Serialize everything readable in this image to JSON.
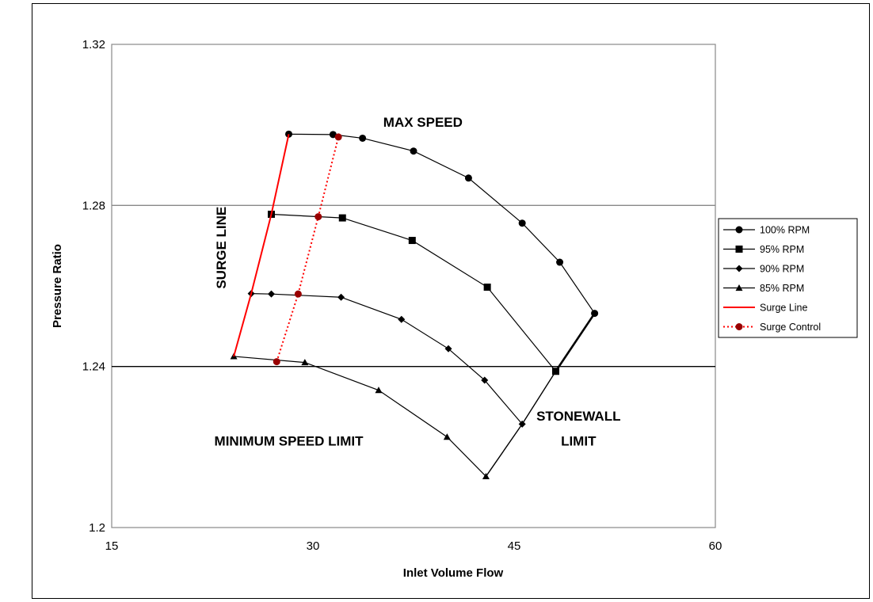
{
  "chart_data": {
    "type": "line",
    "xlabel": "Inlet Volume Flow",
    "ylabel": "Pressure Ratio",
    "xlim": [
      15,
      60
    ],
    "ylim": [
      1.2,
      1.32
    ],
    "xticks": [
      15,
      30,
      45,
      60
    ],
    "yticks": [
      1.2,
      1.24,
      1.28,
      1.32
    ],
    "xtick_labels": [
      "15",
      "30",
      "45",
      "60"
    ],
    "ytick_labels": [
      "1.2",
      "1.24",
      "1.28",
      "1.32"
    ],
    "grid_y": [
      1.24,
      1.28
    ],
    "legend_position": "right",
    "series": [
      {
        "name": "100% RPM",
        "marker": "circle",
        "color": "#000000",
        "x": [
          28.2,
          31.5,
          33.7,
          37.5,
          41.6,
          45.6,
          48.4,
          51.0
        ],
        "y": [
          1.2977,
          1.2976,
          1.2967,
          1.2935,
          1.2868,
          1.2756,
          1.2659,
          1.2532
        ]
      },
      {
        "name": "95% RPM",
        "marker": "square",
        "color": "#000000",
        "x": [
          26.9,
          32.2,
          37.4,
          43.0,
          48.1
        ],
        "y": [
          1.2778,
          1.2769,
          1.2713,
          1.2597,
          1.2388
        ]
      },
      {
        "name": "90% RPM",
        "marker": "diamond",
        "color": "#000000",
        "x": [
          25.4,
          26.9,
          32.1,
          36.6,
          40.1,
          42.8,
          45.6
        ],
        "y": [
          1.2581,
          1.258,
          1.2572,
          1.2517,
          1.2444,
          1.2366,
          1.2257
        ]
      },
      {
        "name": "85% RPM",
        "marker": "triangle",
        "color": "#000000",
        "x": [
          24.1,
          29.4,
          34.9,
          40.0,
          42.9
        ],
        "y": [
          1.2425,
          1.241,
          1.2341,
          1.2225,
          1.2127
        ]
      },
      {
        "name": "Surge Line",
        "marker": "none",
        "line": "solid",
        "color": "#ff0000",
        "x": [
          24.1,
          25.4,
          26.9,
          28.2
        ],
        "y": [
          1.2425,
          1.2581,
          1.2778,
          1.2977
        ]
      },
      {
        "name": "Surge Control",
        "marker": "circle",
        "line": "dotted",
        "color": "#ff0000",
        "marker_color": "#990000",
        "x": [
          27.3,
          28.9,
          30.4,
          31.9
        ],
        "y": [
          1.2412,
          1.258,
          1.2772,
          1.297
        ]
      }
    ],
    "extra_lines": [
      {
        "label": "Stonewall / min-speed limit connector",
        "color": "#000000",
        "x": [
          42.9,
          45.6,
          48.1,
          51.0
        ],
        "y": [
          1.2127,
          1.2257,
          1.2388,
          1.2532
        ]
      }
    ],
    "annotations": [
      {
        "text": "MAX SPEED",
        "x": 38.2,
        "y": 1.2995,
        "anchor": "middle",
        "rotate": 0
      },
      {
        "text": "SURGE LINE",
        "x": 23.5,
        "y": 1.2695,
        "anchor": "middle",
        "rotate": -90
      },
      {
        "text": "MINIMUM SPEED LIMIT",
        "x": 28.2,
        "y": 1.2204,
        "anchor": "middle",
        "rotate": 0
      },
      {
        "text": "STONEWALL",
        "x": 49.8,
        "y": 1.2266,
        "anchor": "middle",
        "rotate": 0
      },
      {
        "text": "LIMIT",
        "x": 49.8,
        "y": 1.2204,
        "anchor": "middle",
        "rotate": 0
      }
    ]
  }
}
